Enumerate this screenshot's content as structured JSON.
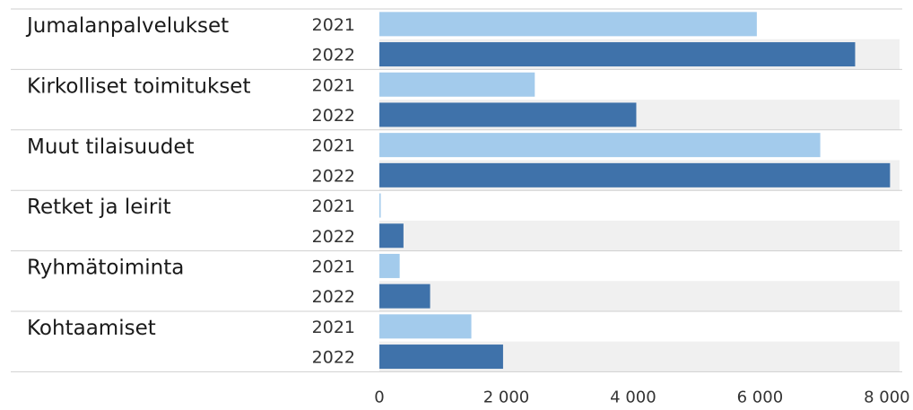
{
  "chart_data": {
    "type": "bar",
    "orientation": "horizontal",
    "categories": [
      "Jumalanpalvelukset",
      "Kirkolliset toimitukset",
      "Muut tilaisuudet",
      "Retket ja leirit",
      "Ryhmätoiminta",
      "Kohtaamiset"
    ],
    "series": [
      {
        "name": "2021",
        "color": "#a3cbec",
        "values": [
          5950,
          2450,
          6950,
          20,
          320,
          1450
        ]
      },
      {
        "name": "2022",
        "color": "#3f72aa",
        "values": [
          7500,
          4050,
          8050,
          380,
          800,
          1950
        ]
      }
    ],
    "xlim": [
      0,
      8200
    ],
    "xticks": [
      0,
      2000,
      4000,
      6000,
      8000
    ],
    "xtick_labels": [
      "0",
      "2 000",
      "4 000",
      "6 000",
      "8 000"
    ],
    "row_band_color": "#f0f0f0",
    "grid": false
  }
}
